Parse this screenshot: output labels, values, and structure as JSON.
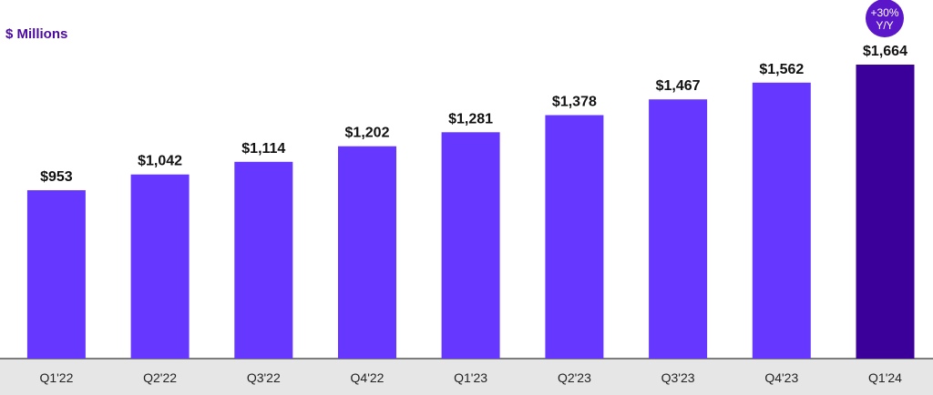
{
  "unit_label": "$ Millions",
  "badge": {
    "line1": "+30%",
    "line2": "Y/Y"
  },
  "colors": {
    "bar": "#6638FF",
    "highlight": "#3B0099",
    "unit_label": "#4B0A9E",
    "axis_band": "#E6E6E6",
    "badge": "#5A16C8"
  },
  "chart_data": {
    "type": "bar",
    "categories": [
      "Q1'22",
      "Q2'22",
      "Q3'22",
      "Q4'22",
      "Q1'23",
      "Q2'23",
      "Q3'23",
      "Q4'23",
      "Q1'24"
    ],
    "values": [
      953,
      1042,
      1114,
      1202,
      1281,
      1378,
      1467,
      1562,
      1664
    ],
    "value_labels": [
      "$953",
      "$1,042",
      "$1,114",
      "$1,202",
      "$1,281",
      "$1,378",
      "$1,467",
      "$1,562",
      "$1,664"
    ],
    "highlight_index": 8,
    "title": "",
    "xlabel": "",
    "ylabel": "$ Millions",
    "ylim": [
      0,
      1664
    ],
    "grid": false,
    "legend": "none"
  }
}
